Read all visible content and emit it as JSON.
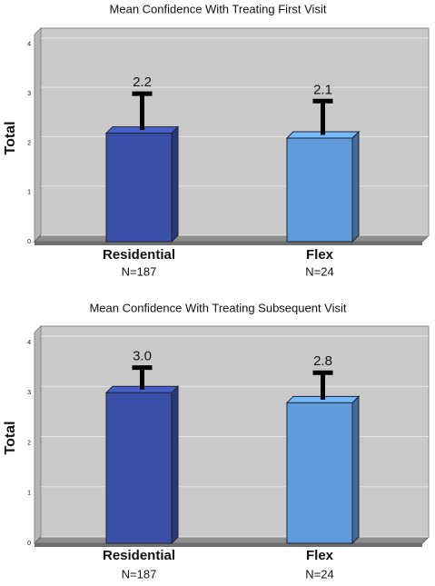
{
  "chart_data": [
    {
      "type": "bar",
      "title": "Mean Confidence With Treating First Visit",
      "y_label": "Total",
      "categories": [
        "Residential",
        "Flex"
      ],
      "category_notes": [
        "N=187",
        "N=24"
      ],
      "values": [
        2.2,
        2.1
      ],
      "errors": [
        0.8,
        0.75
      ],
      "colors": [
        "#3a50a8",
        "#5f9bd8"
      ],
      "ylim": [
        0,
        4.2
      ],
      "yticks": [
        0,
        1,
        2,
        3,
        4
      ],
      "grid": true
    },
    {
      "type": "bar",
      "title": "Mean Confidence With Treating Subsequent Visit",
      "y_label": "Total",
      "categories": [
        "Residential",
        "Flex"
      ],
      "category_notes": [
        "N=187",
        "N=24"
      ],
      "values": [
        3,
        2.8
      ],
      "value_labels": [
        "3.0",
        "2.8"
      ],
      "errors": [
        0.5,
        0.6
      ],
      "colors": [
        "#3a50a8",
        "#5f9bd8"
      ],
      "ylim": [
        0,
        4.2
      ],
      "yticks": [
        0,
        1,
        2,
        3,
        4
      ],
      "grid": true
    }
  ]
}
